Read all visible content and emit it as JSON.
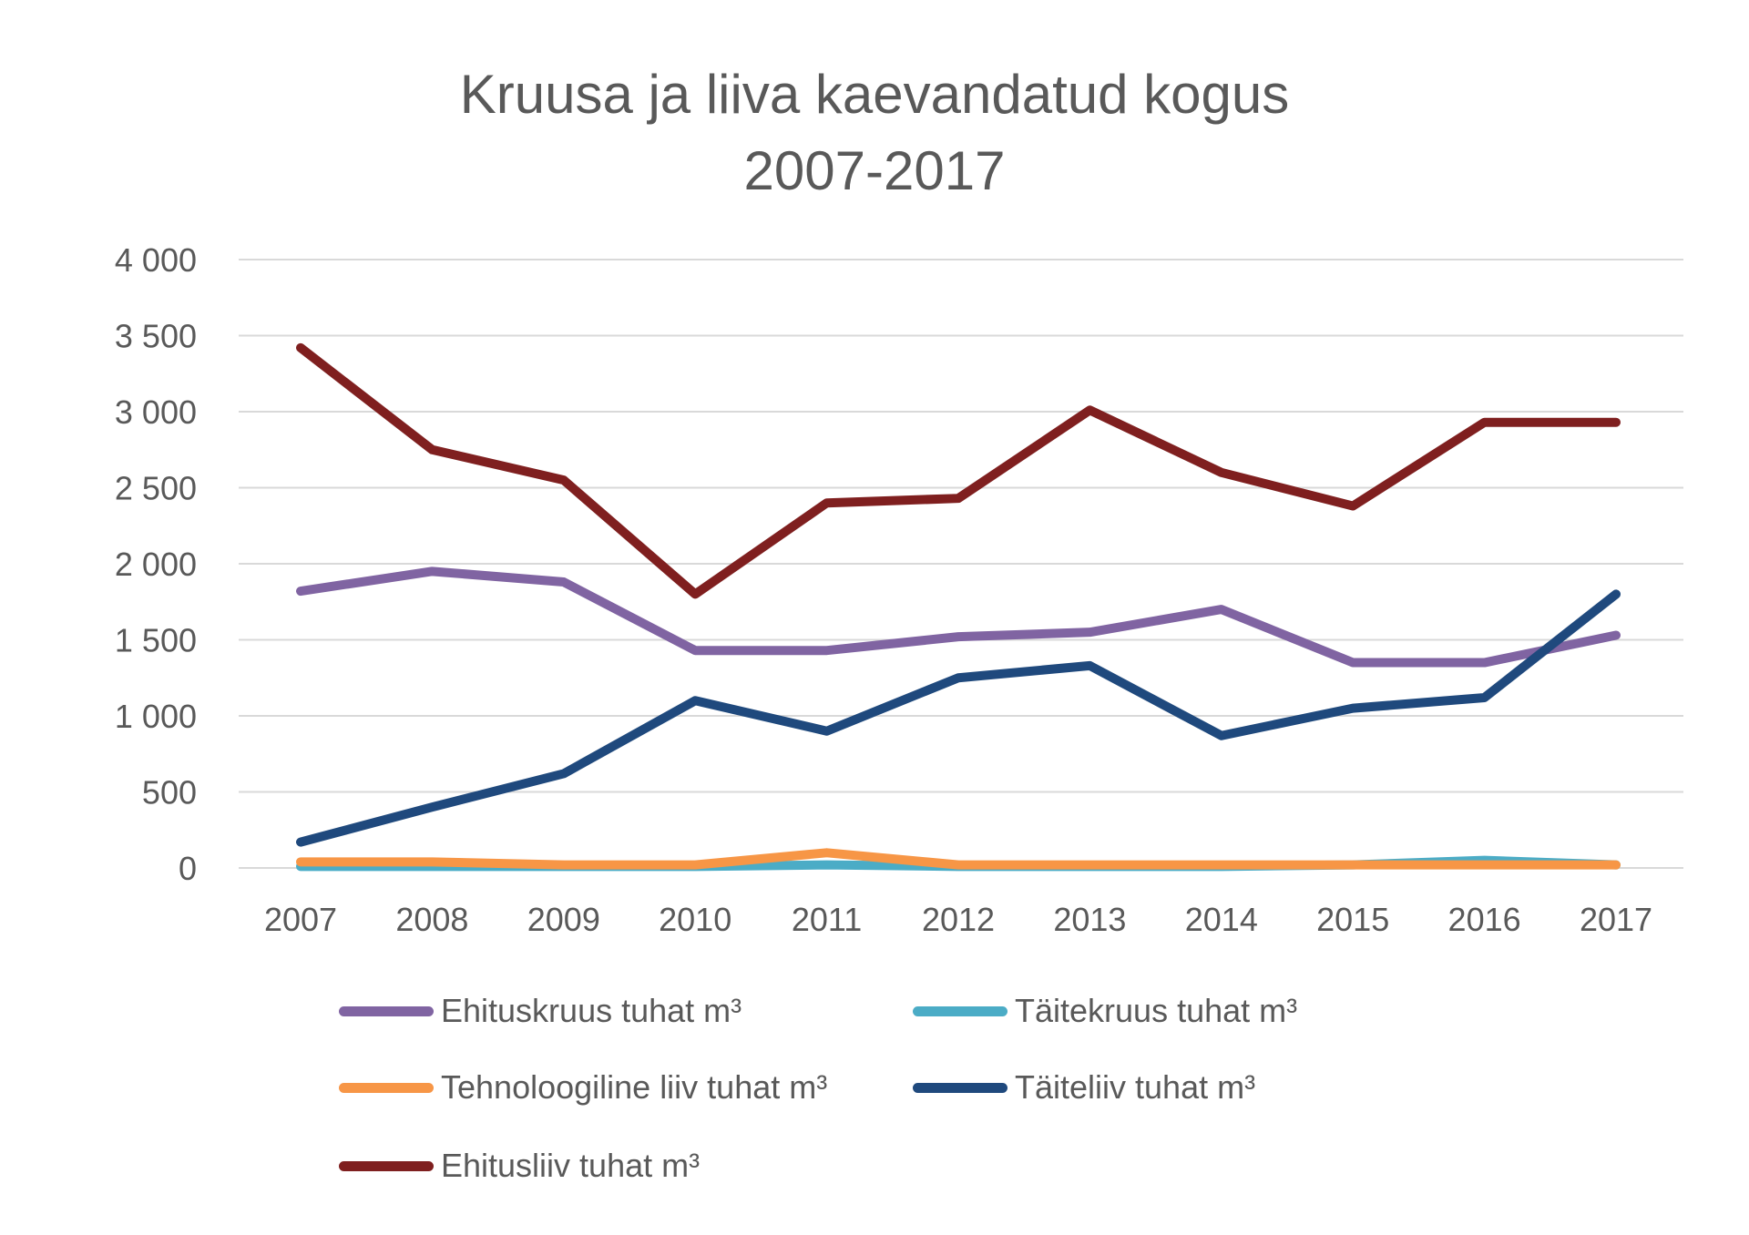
{
  "chart_data": {
    "type": "line",
    "title_line1": "Kruusa ja liiva kaevandatud kogus",
    "title_line2": "2007-2017",
    "xlabel": "",
    "ylabel": "",
    "categories": [
      "2007",
      "2008",
      "2009",
      "2010",
      "2011",
      "2012",
      "2013",
      "2014",
      "2015",
      "2016",
      "2017"
    ],
    "ylim": [
      0,
      4000
    ],
    "yticks": [
      0,
      500,
      1000,
      1500,
      2000,
      2500,
      3000,
      3500,
      4000
    ],
    "ytick_labels": [
      "0",
      "500",
      "1 000",
      "1 500",
      "2 000",
      "2 500",
      "3 000",
      "3 500",
      "4 000"
    ],
    "grid": true,
    "legend_position": "bottom",
    "series": [
      {
        "name": "Ehituskruus tuhat m³",
        "color": "#8064a2",
        "values": [
          1820,
          1950,
          1880,
          1430,
          1430,
          1520,
          1550,
          1700,
          1350,
          1350,
          1530
        ]
      },
      {
        "name": "Täitekruus tuhat m³",
        "color": "#4bacc6",
        "values": [
          10,
          10,
          10,
          10,
          20,
          10,
          10,
          10,
          20,
          50,
          20
        ]
      },
      {
        "name": "Tehnoloogiline liiv tuhat m³",
        "color": "#f79646",
        "values": [
          40,
          40,
          20,
          20,
          100,
          20,
          20,
          20,
          20,
          20,
          20
        ]
      },
      {
        "name": "Täiteliiv tuhat m³",
        "color": "#1f497d",
        "values": [
          170,
          400,
          620,
          1100,
          900,
          1250,
          1330,
          870,
          1050,
          1120,
          1800
        ]
      },
      {
        "name": "Ehitusliiv tuhat m³",
        "color": "#7f1f1f",
        "values": [
          3420,
          2750,
          2550,
          1800,
          2400,
          2430,
          3010,
          2600,
          2380,
          2930,
          2930
        ]
      }
    ]
  }
}
